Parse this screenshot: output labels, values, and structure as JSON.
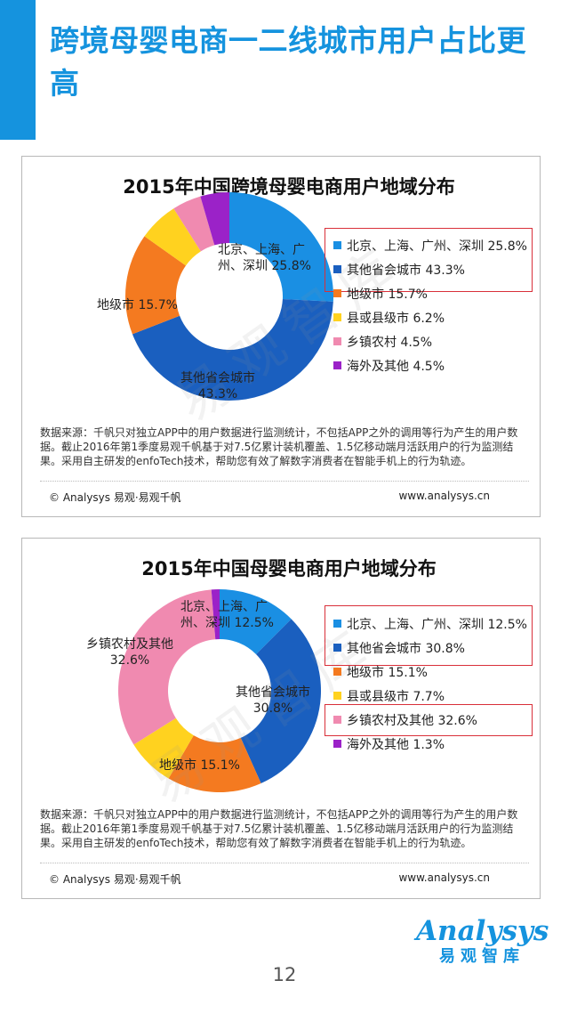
{
  "page": {
    "title": "跨境母婴电商一二线城市用户占比更高",
    "page_number": "12"
  },
  "brand": {
    "logo_text": "Analysys",
    "logo_sub": "易观智库",
    "watermark": "易观智库"
  },
  "colors": {
    "accent": "#1593de",
    "highlight_border": "#d9303a"
  },
  "chart_data": [
    {
      "type": "pie",
      "donut": true,
      "title": "2015年中国跨境母婴电商用户地域分布",
      "categories": [
        "北京、上海、广州、深圳",
        "其他省会城市",
        "地级市",
        "县或县级市",
        "乡镇农村",
        "海外及其他"
      ],
      "values": [
        25.8,
        43.3,
        15.7,
        6.2,
        4.5,
        4.5
      ],
      "colors": [
        "#1a8fe3",
        "#1a5fbf",
        "#f47a20",
        "#ffd21f",
        "#f08ab0",
        "#9b22c8"
      ],
      "legend": [
        {
          "label": "北京、上海、广州、深圳  25.8%"
        },
        {
          "label": "其他省会城市  43.3%"
        },
        {
          "label": "地级市  15.7%"
        },
        {
          "label": "县或县级市  6.2%"
        },
        {
          "label": "乡镇农村  4.5%"
        },
        {
          "label": "海外及其他  4.5%"
        }
      ],
      "slice_labels": [
        {
          "line1": "北京、上海、广",
          "line2": "州、深圳  25.8%"
        },
        {
          "line1": "其他省会城市",
          "line2": "43.3%"
        },
        {
          "line1": "地级市  15.7%",
          "line2": ""
        }
      ],
      "highlight_legend": [
        0,
        1
      ],
      "legend_placement": "right"
    },
    {
      "type": "pie",
      "donut": true,
      "title": "2015年中国母婴电商用户地域分布",
      "categories": [
        "北京、上海、广州、深圳",
        "其他省会城市",
        "地级市",
        "县或县级市",
        "乡镇农村及其他",
        "海外及其他"
      ],
      "values": [
        12.5,
        30.8,
        15.1,
        7.7,
        32.6,
        1.3
      ],
      "colors": [
        "#1a8fe3",
        "#1a5fbf",
        "#f47a20",
        "#ffd21f",
        "#f08ab0",
        "#9b22c8"
      ],
      "legend": [
        {
          "label": "北京、上海、广州、深圳  12.5%"
        },
        {
          "label": "其他省会城市  30.8%"
        },
        {
          "label": "地级市  15.1%"
        },
        {
          "label": "县或县级市  7.7%"
        },
        {
          "label": "乡镇农村及其他  32.6%"
        },
        {
          "label": "海外及其他  1.3%"
        }
      ],
      "slice_labels": [
        {
          "line1": "北京、上海、广",
          "line2": "州、深圳  12.5%"
        },
        {
          "line1": "其他省会城市",
          "line2": "30.8%"
        },
        {
          "line1": "地级市  15.1%",
          "line2": ""
        },
        {
          "line1": "乡镇农村及其他",
          "line2": "32.6%"
        }
      ],
      "highlight_legend": [
        0,
        1,
        4
      ],
      "legend_placement": "right"
    }
  ],
  "cards": [
    {
      "source_text": "数据来源：千帆只对独立APP中的用户数据进行监测统计，不包括APP之外的调用等行为产生的用户数据。截止2016年第1季度易观千帆基于对7.5亿累计装机覆盖、1.5亿移动端月活跃用户的行为监测结果。采用自主研发的enfoTech技术，帮助您有效了解数字消费者在智能手机上的行为轨迹。",
      "footer_left": "© Analysys 易观·易观千帆",
      "footer_right": "www.analysys.cn"
    },
    {
      "source_text": "数据来源：千帆只对独立APP中的用户数据进行监测统计，不包括APP之外的调用等行为产生的用户数据。截止2016年第1季度易观千帆基于对7.5亿累计装机覆盖、1.5亿移动端月活跃用户的行为监测结果。采用自主研发的enfoTech技术，帮助您有效了解数字消费者在智能手机上的行为轨迹。",
      "footer_left": "© Analysys 易观·易观千帆",
      "footer_right": "www.analysys.cn"
    }
  ]
}
